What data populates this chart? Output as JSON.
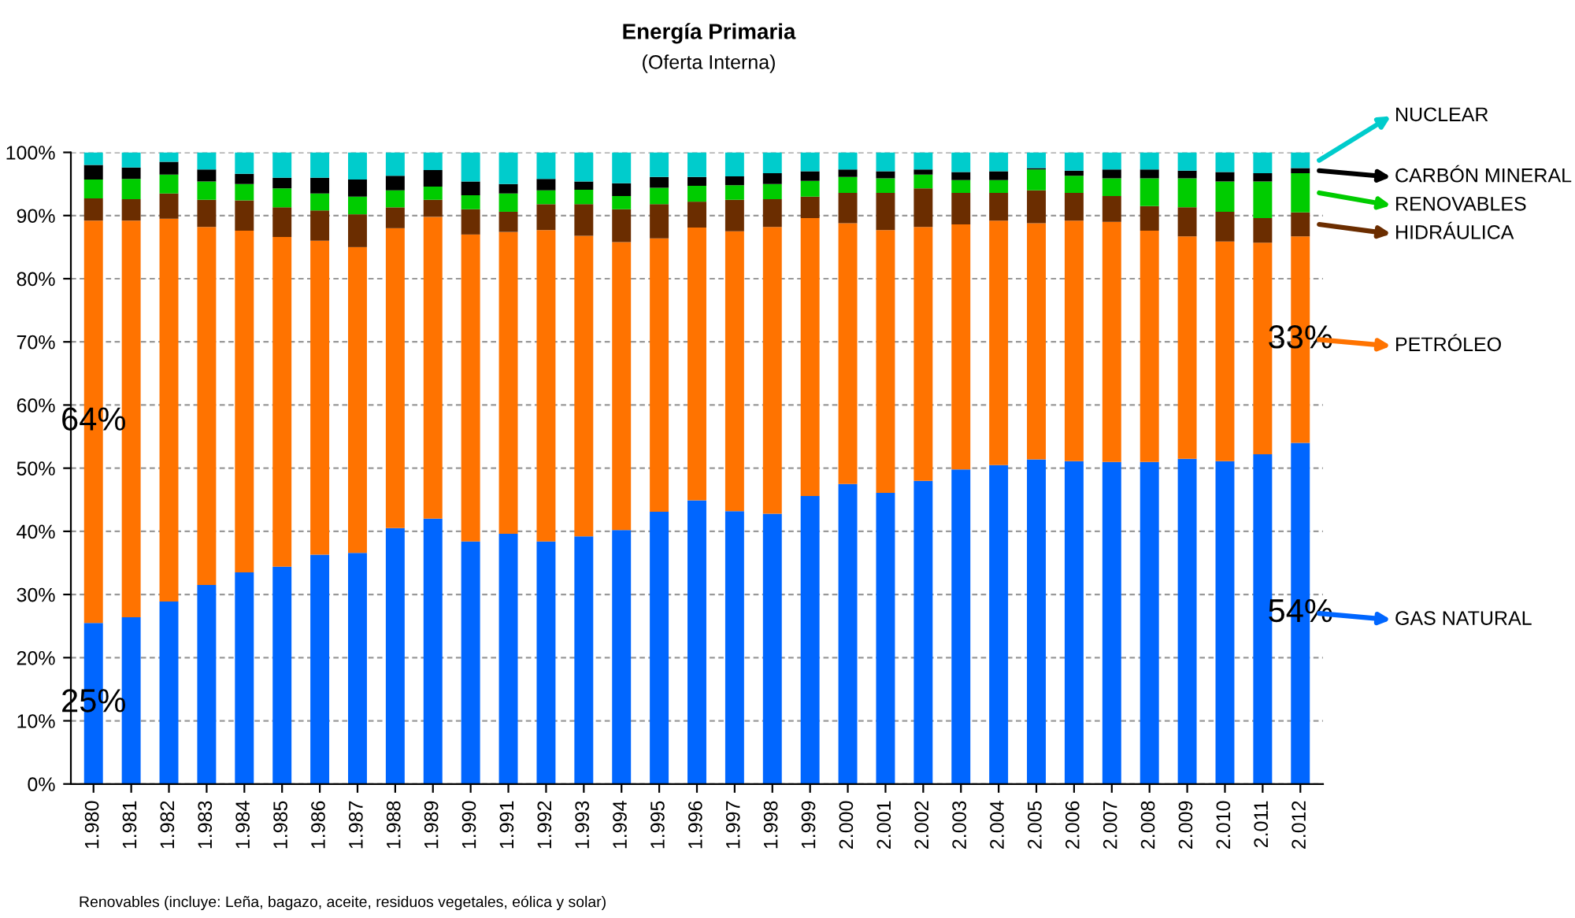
{
  "chart_data": {
    "type": "bar",
    "stacked": true,
    "title": "Energía Primaria",
    "subtitle": "(Oferta Interna)",
    "categories": [
      "1.980",
      "1.981",
      "1.982",
      "1.983",
      "1.984",
      "1.985",
      "1.986",
      "1.987",
      "1.988",
      "1.989",
      "1.990",
      "1.991",
      "1.992",
      "1.993",
      "1.994",
      "1.995",
      "1.996",
      "1.997",
      "1.998",
      "1.999",
      "2.000",
      "2.001",
      "2.002",
      "2.003",
      "2.004",
      "2.005",
      "2.006",
      "2.007",
      "2.008",
      "2.009",
      "2.010",
      "2.011",
      "2.012"
    ],
    "series": [
      {
        "name": "GAS NATURAL",
        "color": "#0066ff",
        "values": [
          25.5,
          26.4,
          28.9,
          31.5,
          33.5,
          34.4,
          36.3,
          36.6,
          40.5,
          42.0,
          38.4,
          39.6,
          38.4,
          39.2,
          40.2,
          43.1,
          44.9,
          43.2,
          42.8,
          45.6,
          47.5,
          46.1,
          48.0,
          49.8,
          50.5,
          51.4,
          51.1,
          51.0,
          51.0,
          51.5,
          51.1,
          52.2,
          54.0
        ],
        "value_labels": [
          "25%",
          null,
          null,
          null,
          null,
          null,
          null,
          null,
          null,
          null,
          null,
          null,
          null,
          null,
          null,
          null,
          null,
          null,
          null,
          null,
          null,
          null,
          null,
          null,
          null,
          null,
          null,
          null,
          null,
          null,
          null,
          null,
          "54%"
        ]
      },
      {
        "name": "PETRÓLEO",
        "color": "#ff7300",
        "values": [
          63.7,
          62.8,
          60.6,
          56.7,
          54.1,
          52.2,
          49.7,
          48.4,
          47.5,
          47.8,
          48.6,
          47.8,
          49.3,
          47.6,
          45.6,
          43.3,
          43.2,
          44.3,
          45.4,
          44.0,
          41.3,
          41.6,
          40.2,
          38.8,
          38.7,
          37.4,
          38.1,
          38.0,
          36.6,
          35.2,
          34.8,
          33.5,
          32.7
        ],
        "value_labels": [
          "64%",
          null,
          null,
          null,
          null,
          null,
          null,
          null,
          null,
          null,
          null,
          null,
          null,
          null,
          null,
          null,
          null,
          null,
          null,
          null,
          null,
          null,
          null,
          null,
          null,
          null,
          null,
          null,
          null,
          null,
          null,
          null,
          "33%"
        ]
      },
      {
        "name": "HIDRÁULICA",
        "color": "#6b2d00",
        "values": [
          3.5,
          3.4,
          4.0,
          4.3,
          4.8,
          4.7,
          4.8,
          5.2,
          3.3,
          2.7,
          4.0,
          3.2,
          4.1,
          5.0,
          5.2,
          5.4,
          4.1,
          5.0,
          4.4,
          3.4,
          4.8,
          5.9,
          6.1,
          5.0,
          4.4,
          5.2,
          4.4,
          4.1,
          3.9,
          4.6,
          4.7,
          3.9,
          3.8
        ]
      },
      {
        "name": "RENOVABLES",
        "color": "#00cc00",
        "values": [
          3.0,
          3.2,
          3.0,
          2.9,
          2.6,
          3.0,
          2.7,
          2.8,
          2.7,
          2.1,
          2.2,
          2.9,
          2.2,
          2.3,
          2.1,
          2.6,
          2.5,
          2.3,
          2.4,
          2.5,
          2.5,
          2.3,
          2.2,
          2.0,
          2.0,
          3.3,
          2.7,
          2.8,
          4.4,
          4.6,
          4.8,
          5.8,
          6.2
        ]
      },
      {
        "name": "CARBÓN MINERAL",
        "color": "#000000",
        "values": [
          2.3,
          1.8,
          2.0,
          1.9,
          1.6,
          1.7,
          2.5,
          2.7,
          2.3,
          2.6,
          2.2,
          1.5,
          1.8,
          1.3,
          2.0,
          1.7,
          1.4,
          1.4,
          1.7,
          1.5,
          1.2,
          1.1,
          0.8,
          1.3,
          1.4,
          0.2,
          0.8,
          1.4,
          1.4,
          1.2,
          1.5,
          1.3,
          0.8
        ]
      },
      {
        "name": "NUCLEAR",
        "color": "#00cccc",
        "values": [
          2.0,
          2.4,
          1.5,
          2.7,
          3.4,
          4.0,
          4.0,
          4.3,
          3.7,
          2.8,
          4.6,
          5.0,
          4.2,
          4.6,
          4.9,
          3.9,
          3.9,
          3.8,
          3.3,
          3.0,
          2.7,
          3.0,
          2.7,
          3.1,
          3.0,
          2.5,
          2.9,
          2.7,
          2.7,
          2.9,
          3.1,
          3.3,
          2.5
        ]
      }
    ],
    "ylim": [
      0,
      100
    ],
    "yticks": [
      {
        "value": 0,
        "label": "0%"
      },
      {
        "value": 10,
        "label": "10%"
      },
      {
        "value": 20,
        "label": "20%"
      },
      {
        "value": 30,
        "label": "30%"
      },
      {
        "value": 40,
        "label": "40%"
      },
      {
        "value": 50,
        "label": "50%"
      },
      {
        "value": 60,
        "label": "60%"
      },
      {
        "value": 70,
        "label": "70%"
      },
      {
        "value": 80,
        "label": "80%"
      },
      {
        "value": 90,
        "label": "90%"
      },
      {
        "value": 100,
        "label": "100%"
      }
    ],
    "grid": "y",
    "legend": "right",
    "annotations": [
      "Renovables (incluye: Leña, bagazo, aceite, residuos vegetales, eólica y solar)"
    ]
  }
}
